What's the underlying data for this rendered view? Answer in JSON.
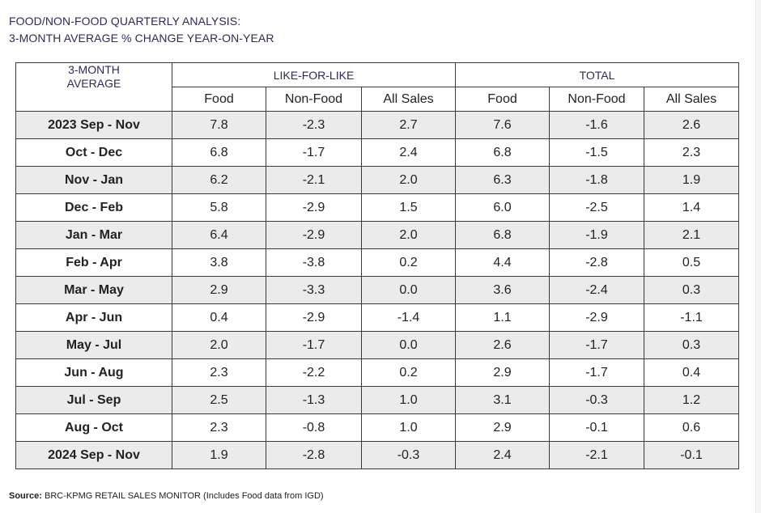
{
  "title": {
    "line1": "FOOD/NON-FOOD QUARTERLY ANALYSIS:",
    "line2": "3-MONTH AVERAGE % CHANGE YEAR-ON-YEAR"
  },
  "table": {
    "corner_line1": "3-MONTH",
    "corner_line2": "AVERAGE",
    "groups": [
      "LIKE-FOR-LIKE",
      "TOTAL"
    ],
    "columns": [
      "Food",
      "Non-Food",
      "All Sales",
      "Food",
      "Non-Food",
      "All Sales"
    ],
    "rows": [
      {
        "label": "2023 Sep - Nov",
        "values": [
          "7.8",
          "-2.3",
          "2.7",
          "7.6",
          "-1.6",
          "2.6"
        ]
      },
      {
        "label": "Oct - Dec",
        "values": [
          "6.8",
          "-1.7",
          "2.4",
          "6.8",
          "-1.5",
          "2.3"
        ]
      },
      {
        "label": "Nov - Jan",
        "values": [
          "6.2",
          "-2.1",
          "2.0",
          "6.3",
          "-1.8",
          "1.9"
        ]
      },
      {
        "label": "Dec - Feb",
        "values": [
          "5.8",
          "-2.9",
          "1.5",
          "6.0",
          "-2.5",
          "1.4"
        ]
      },
      {
        "label": "Jan - Mar",
        "values": [
          "6.4",
          "-2.9",
          "2.0",
          "6.8",
          "-1.9",
          "2.1"
        ]
      },
      {
        "label": "Feb - Apr",
        "values": [
          "3.8",
          "-3.8",
          "0.2",
          "4.4",
          "-2.8",
          "0.5"
        ]
      },
      {
        "label": "Mar - May",
        "values": [
          "2.9",
          "-3.3",
          "0.0",
          "3.6",
          "-2.4",
          "0.3"
        ]
      },
      {
        "label": "Apr - Jun",
        "values": [
          "0.4",
          "-2.9",
          "-1.4",
          "1.1",
          "-2.9",
          "-1.1"
        ]
      },
      {
        "label": "May - Jul",
        "values": [
          "2.0",
          "-1.7",
          "0.0",
          "2.6",
          "-1.7",
          "0.3"
        ]
      },
      {
        "label": "Jun - Aug",
        "values": [
          "2.3",
          "-2.2",
          "0.2",
          "2.9",
          "-1.7",
          "0.4"
        ]
      },
      {
        "label": "Jul - Sep",
        "values": [
          "2.5",
          "-1.3",
          "1.0",
          "3.1",
          "-0.3",
          "1.2"
        ]
      },
      {
        "label": "Aug - Oct",
        "values": [
          "2.3",
          "-0.8",
          "1.0",
          "2.9",
          "-0.1",
          "0.6"
        ]
      },
      {
        "label": "2024 Sep - Nov",
        "values": [
          "1.9",
          "-2.8",
          "-0.3",
          "2.4",
          "-2.1",
          "-0.1"
        ]
      }
    ]
  },
  "source": {
    "label": "Source:",
    "text": "BRC-KPMG RETAIL SALES MONITOR (Includes Food data from IGD)"
  },
  "colors": {
    "title_text": "#2c2a5a",
    "shaded_row": "#ebebeb",
    "border": "#3a3a3a"
  }
}
